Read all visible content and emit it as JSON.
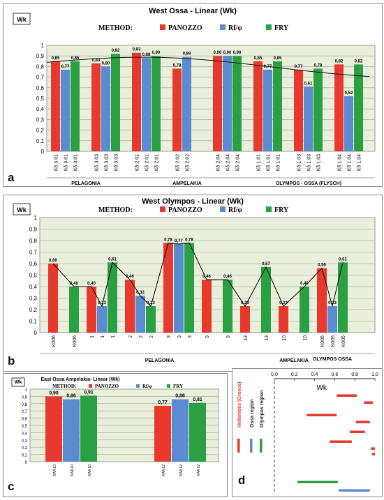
{
  "colors": {
    "panozzo": "#e8392e",
    "rf": "#5b8bd1",
    "fry": "#2aa043",
    "plot_bg": "#eaefdc",
    "grid": "#9aa596"
  },
  "legend": {
    "method_label": "METHOD:",
    "panozzo": "PANOZZO",
    "rf": "Rf/φ",
    "fry": "FRY"
  },
  "chart_data": [
    {
      "panel": "a",
      "type": "bar",
      "title": "West Ossa - Linear (Wk)",
      "ylabel": "Wk",
      "ylim": [
        0,
        1
      ],
      "yticks": [
        "0",
        "0,1",
        "0,2",
        "0,3",
        "0,4",
        "0,5",
        "0,6",
        "0,7",
        "0,8",
        "0,9",
        "1"
      ],
      "groups": [
        {
          "panozzo": 0.85,
          "rf": 0.77,
          "fry": 0.85,
          "labels": [
            "Kδ 3.01",
            "Kδ 3.01",
            "Kδ 3.01"
          ],
          "values": [
            "0,85",
            "0,77",
            "0,85"
          ]
        },
        {
          "panozzo": 0.83,
          "rf": 0.8,
          "fry": 0.92,
          "labels": [
            "Kδ 3.03",
            "Kδ 3.03",
            "Kδ 3.03"
          ],
          "values": [
            "0,83",
            "0,80",
            "0,92"
          ]
        },
        {
          "panozzo": 0.93,
          "rf": 0.88,
          "fry": 0.9,
          "labels": [
            "Kδ 2.01",
            "Kδ 2.01",
            "Kδ 2.01"
          ],
          "values": [
            "0,93",
            "0,88",
            "0,90"
          ]
        },
        {
          "panozzo": 0.78,
          "rf": 0.89,
          "fry": null,
          "labels": [
            "Kδ 2.02",
            "Kδ 2.02",
            ""
          ],
          "values": [
            "0,78",
            "0,89",
            ""
          ]
        },
        {
          "panozzo": 0.9,
          "rf": 0.9,
          "fry": 0.9,
          "labels": [
            "Kδ 2.04",
            "Kδ 2.04",
            "Kδ 2.04"
          ],
          "values": [
            "0,90",
            "0,90",
            "0,90"
          ]
        },
        {
          "panozzo": 0.85,
          "rf": 0.77,
          "fry": 0.85,
          "labels": [
            "Kδ 1.01",
            "Kδ 1.01",
            "Kδ 1.01"
          ],
          "values": [
            "0,85",
            "0,77",
            "0,85"
          ]
        },
        {
          "panozzo": 0.77,
          "rf": 0.61,
          "fry": 0.78,
          "labels": [
            "Kδ 1.03",
            "Kδ 1.03",
            "Kδ 1.03"
          ],
          "values": [
            "0,77",
            "0,61",
            "0,78"
          ]
        },
        {
          "panozzo": 0.82,
          "rf": 0.52,
          "fry": 0.82,
          "labels": [
            "Kδ 1.04",
            "Kδ 1.04",
            "Kδ 1.04"
          ],
          "values": [
            "0,82",
            "0,52",
            "0,82"
          ]
        }
      ],
      "regions": [
        {
          "name": "PELAGONIA",
          "from": 0,
          "to": 1
        },
        {
          "name": "AMPELAKIA",
          "from": 2,
          "to": 4
        },
        {
          "name": "OLYMPOS - OSSA (FLYSCH)",
          "from": 5,
          "to": 7
        }
      ]
    },
    {
      "panel": "b",
      "type": "bar",
      "title": "West Olympos - Linear (Wk)",
      "ylabel": "Wk",
      "ylim": [
        0,
        1
      ],
      "yticks": [
        "0",
        "0,1",
        "0,2",
        "0,3",
        "0,4",
        "0,5",
        "0,6",
        "0,7",
        "0,8",
        "0,9",
        "1"
      ],
      "groups": [
        {
          "panozzo": 0.6,
          "rf": null,
          "fry": 0.4,
          "labels": [
            "K006",
            "",
            "K006"
          ],
          "values": [
            "0,60",
            "",
            "0,40"
          ]
        },
        {
          "panozzo": 0.4,
          "rf": 0.23,
          "fry": 0.61,
          "labels": [
            "1",
            "1",
            "1"
          ],
          "values": [
            "0,40",
            "0,23",
            "0,61"
          ]
        },
        {
          "panozzo": 0.46,
          "rf": 0.32,
          "fry": 0.23,
          "labels": [
            "2",
            "2",
            "2"
          ],
          "values": [
            "0,46",
            "0,32",
            "0,23"
          ]
        },
        {
          "panozzo": 0.78,
          "rf": 0.77,
          "fry": 0.78,
          "labels": [
            "3",
            "3",
            "3"
          ],
          "values": [
            "0,78",
            "0,77",
            "0,78"
          ]
        },
        {
          "panozzo": 0.46,
          "rf": null,
          "fry": 0.46,
          "labels": [
            "9",
            "",
            "9"
          ],
          "values": [
            "0,46",
            "",
            "0,46"
          ]
        },
        {
          "panozzo": 0.23,
          "rf": null,
          "fry": 0.57,
          "labels": [
            "13",
            "",
            "13"
          ],
          "values": [
            "0,23",
            "",
            "0,57"
          ]
        },
        {
          "panozzo": 0.23,
          "rf": null,
          "fry": 0.4,
          "labels": [
            "10",
            "",
            "10"
          ],
          "values": [
            "0,23",
            "",
            "0,40"
          ]
        },
        {
          "panozzo": 0.56,
          "rf": 0.23,
          "fry": 0.61,
          "labels": [
            "K005",
            "K005",
            "K005"
          ],
          "values": [
            "0,56",
            "0,23",
            "0,61"
          ]
        }
      ],
      "regions": [
        {
          "name": "PELAGONIA",
          "from": 0,
          "to": 5
        },
        {
          "name": "AMPELAKIA",
          "from": 6,
          "to": 6
        },
        {
          "name": "OLYMPOS OSSA",
          "from": 7,
          "to": 7
        }
      ]
    },
    {
      "panel": "c",
      "type": "bar",
      "title": "East Ossa Ampelakia- Linear (Wk)",
      "ylabel": "Wk",
      "ylim": [
        0,
        1
      ],
      "yticks": [
        "0",
        "0,1",
        "0,2",
        "0,3",
        "0,4",
        "0,5",
        "0,6",
        "0,7",
        "0,8",
        "0,9",
        "1"
      ],
      "groups": [
        {
          "panozzo": 0.9,
          "rf": 0.86,
          "fry": 0.91,
          "labels": [
            "KAA 10",
            "KAA 10",
            "KAA 10"
          ],
          "values": [
            "0,90",
            "0,86",
            "0,91"
          ]
        },
        {
          "panozzo": 0.77,
          "rf": 0.86,
          "fry": 0.81,
          "labels": [
            "KAA 12",
            "KAA 12",
            "KAA 12"
          ],
          "values": [
            "0,77",
            "0,86",
            "0,81"
          ]
        }
      ]
    },
    {
      "panel": "d",
      "type": "range",
      "xlabel": "Wk",
      "xlim": [
        0,
        1
      ],
      "xticks": [
        "0.0",
        "0.2",
        "0.4",
        "0.6",
        "0.8",
        "1.0"
      ],
      "legend_items": [
        "Hellenides (Greece)",
        "Ossa region",
        "Olympos region"
      ],
      "ranges": [
        {
          "group": "Hellenides (Greece)",
          "from": 0.62,
          "to": 0.82
        },
        {
          "group": "Hellenides (Greece)",
          "from": 0.89,
          "to": 0.98
        },
        {
          "group": "Hellenides (Greece)",
          "from": 0.32,
          "to": 0.62
        },
        {
          "group": "Hellenides (Greece)",
          "from": 0.81,
          "to": 0.95
        },
        {
          "group": "Hellenides (Greece)",
          "from": 0.75,
          "to": 0.9
        },
        {
          "group": "Hellenides (Greece)",
          "from": 0.55,
          "to": 0.77
        },
        {
          "group": "Hellenides (Greece)",
          "from": 0.96,
          "to": 1.0
        },
        {
          "group": "Hellenides (Greece)",
          "from": 0.97,
          "to": 1.0
        },
        {
          "group": "Olympos region",
          "from": 0.23,
          "to": 0.63
        },
        {
          "group": "Ossa region",
          "from": 0.64,
          "to": 0.95
        }
      ]
    }
  ],
  "panel_labels": [
    "a",
    "b",
    "c",
    "d"
  ]
}
